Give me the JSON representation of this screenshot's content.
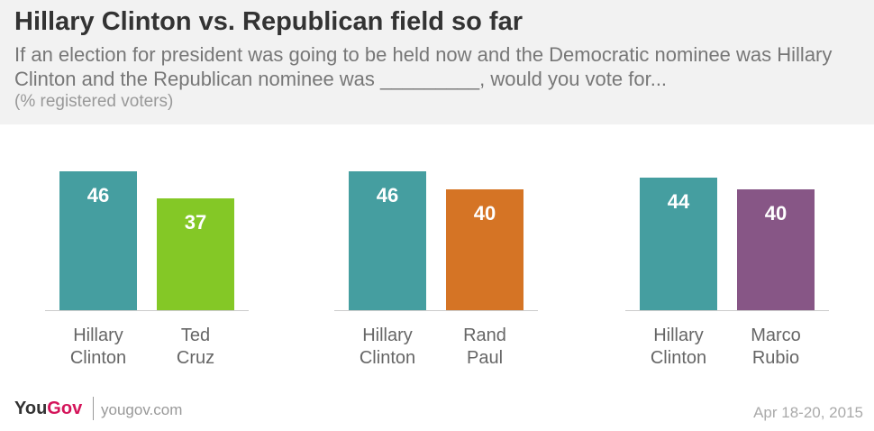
{
  "header": {
    "title": "Hillary Clinton vs. Republican field so far",
    "subtitle": "If an election for president was going to be held now and the Democratic nominee was Hillary Clinton and the Republican nominee was _________, would you vote for...",
    "note": "(% registered voters)"
  },
  "chart_data": [
    {
      "type": "bar",
      "categories": [
        "Hillary\nClinton",
        "Ted\nCruz"
      ],
      "values": [
        46,
        37
      ],
      "colors": [
        "#459ea0",
        "#84c826"
      ]
    },
    {
      "type": "bar",
      "categories": [
        "Hillary\nClinton",
        "Rand\nPaul"
      ],
      "values": [
        46,
        40
      ],
      "colors": [
        "#459ea0",
        "#d57425"
      ]
    },
    {
      "type": "bar",
      "categories": [
        "Hillary\nClinton",
        "Marco\nRubio"
      ],
      "values": [
        44,
        40
      ],
      "colors": [
        "#459ea0",
        "#875686"
      ]
    }
  ],
  "footer": {
    "logo_you": "You",
    "logo_gov": "Gov",
    "site": "yougov.com",
    "date": "Apr 18-20, 2015"
  }
}
